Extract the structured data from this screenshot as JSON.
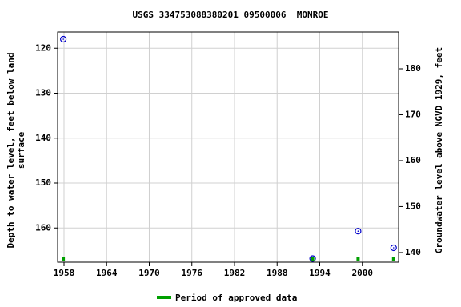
{
  "chart_data": {
    "type": "scatter",
    "title": "USGS 334753088380201 09500006  MONROE",
    "ylabel": [
      "Depth to water level, feet below land",
      "surface"
    ],
    "y2label": "Groundwater level above NGVD 1929, feet",
    "xlim": [
      1957.1,
      2005.1
    ],
    "xticks": [
      1958,
      1964,
      1970,
      1976,
      1982,
      1988,
      1994,
      2000
    ],
    "ylim": [
      116.4,
      167.6
    ],
    "yticks": [
      120,
      130,
      140,
      150,
      160
    ],
    "y_inverted": true,
    "y2lim": [
      137.9,
      188
    ],
    "y2ticks": [
      140,
      150,
      160,
      170,
      180
    ],
    "grid": true,
    "series": [
      {
        "color": "#0000cc",
        "x": [
          1957.9,
          1993.0,
          1999.4,
          2004.4
        ],
        "values": [
          118.0,
          166.8,
          160.7,
          164.4
        ]
      }
    ],
    "approved": {
      "name": "Period of approved data",
      "color": "#00a000",
      "x": [
        1957.9,
        1993.0,
        1999.4,
        2004.4
      ]
    }
  }
}
